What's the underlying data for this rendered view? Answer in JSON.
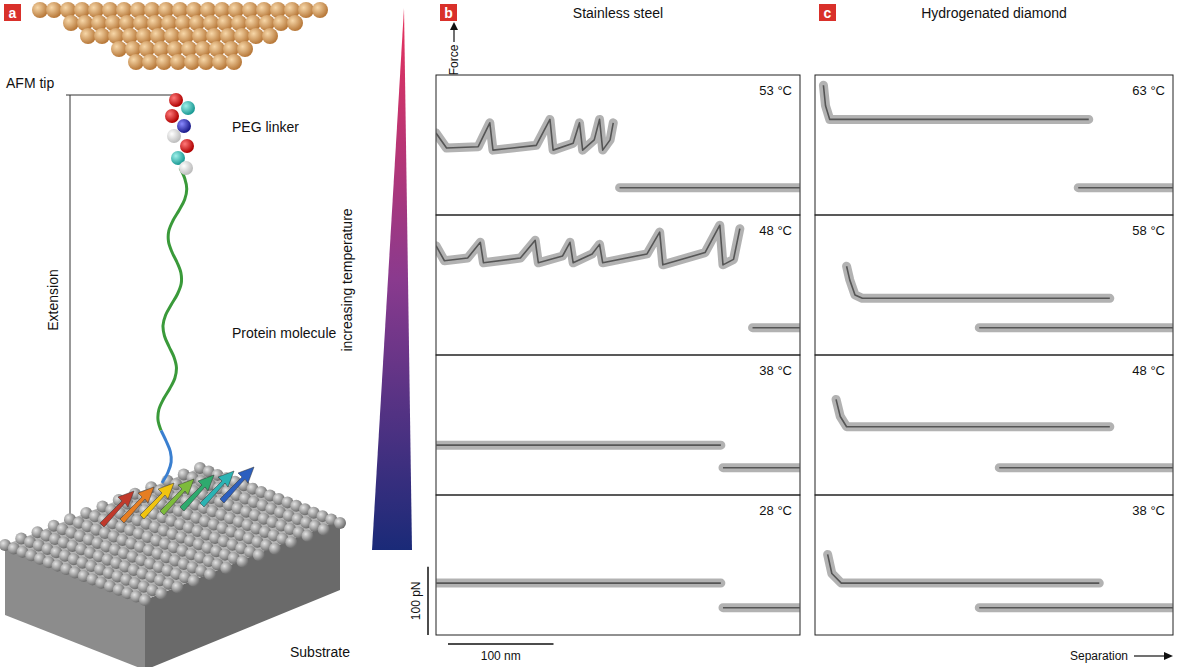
{
  "panel_a": {
    "letter": "a",
    "labels": {
      "tip": "AFM tip",
      "linker": "PEG linker",
      "extension": "Extension",
      "protein": "Protein molecule",
      "substrate": "Substrate"
    }
  },
  "temperature_label": "increasing temperature",
  "axis_labels": {
    "force": "Force",
    "separation": "Separation"
  },
  "scale_bars": {
    "force": {
      "value": 100,
      "label": "100 pN"
    },
    "separation": {
      "value": 100,
      "label": "100 nm"
    }
  },
  "columns": [
    {
      "letter": "b",
      "title": "Stainless steel"
    },
    {
      "letter": "c",
      "title": "Hydrogenated diamond"
    }
  ],
  "chart_data": [
    {
      "type": "line",
      "title": "53 °C",
      "xlim": [
        0,
        345
      ],
      "ylim": [
        -40,
        165
      ],
      "tick_labels": false,
      "series": [
        {
          "color": "#555555",
          "x": [
            0,
            10,
            40,
            51,
            54,
            95,
            108,
            111,
            130,
            136,
            139,
            150,
            155,
            158,
            165,
            168,
            171,
            174,
            345
          ],
          "values": [
            80,
            58,
            60,
            95,
            55,
            62,
            100,
            55,
            65,
            95,
            55,
            70,
            100,
            55,
            70,
            95,
            null,
            0,
            0
          ]
        }
      ]
    },
    {
      "type": "line",
      "title": "48 °C",
      "xlim": [
        0,
        345
      ],
      "ylim": [
        -40,
        165
      ],
      "tick_labels": false,
      "series": [
        {
          "color": "#555555",
          "x": [
            0,
            8,
            30,
            42,
            45,
            80,
            94,
            97,
            120,
            127,
            130,
            148,
            155,
            158,
            200,
            212,
            215,
            255,
            269,
            272,
            282,
            288,
            291,
            300,
            345
          ],
          "values": [
            120,
            98,
            102,
            125,
            95,
            102,
            128,
            95,
            105,
            125,
            95,
            108,
            122,
            95,
            108,
            140,
            92,
            110,
            150,
            92,
            100,
            145,
            null,
            0,
            0
          ]
        }
      ]
    },
    {
      "type": "line",
      "title": "38 °C",
      "xlim": [
        0,
        345
      ],
      "ylim": [
        -40,
        165
      ],
      "tick_labels": false,
      "series": [
        {
          "color": "#555555",
          "x": [
            0,
            270,
            271,
            272,
            345
          ],
          "values": [
            33,
            33,
            null,
            0,
            0
          ]
        }
      ]
    },
    {
      "type": "line",
      "title": "28 °C",
      "xlim": [
        0,
        345
      ],
      "ylim": [
        -40,
        165
      ],
      "tick_labels": false,
      "series": [
        {
          "color": "#555555",
          "x": [
            0,
            270,
            271,
            272,
            345
          ],
          "values": [
            36,
            36,
            null,
            0,
            0
          ]
        }
      ]
    },
    {
      "type": "line",
      "title": "63 °C",
      "xlim": [
        0,
        340
      ],
      "ylim": [
        -40,
        165
      ],
      "tick_labels": false,
      "series": [
        {
          "color": "#555555",
          "x": [
            8,
            10,
            14,
            260,
            260,
            250,
            340
          ],
          "values": [
            150,
            120,
            100,
            100,
            null,
            0,
            0
          ]
        }
      ]
    },
    {
      "type": "line",
      "title": "58 °C",
      "xlim": [
        0,
        340
      ],
      "ylim": [
        -40,
        165
      ],
      "tick_labels": false,
      "series": [
        {
          "color": "#555555",
          "x": [
            30,
            33,
            38,
            45,
            280,
            280,
            156,
            340
          ],
          "values": [
            90,
            70,
            48,
            43,
            43,
            null,
            0,
            0
          ]
        }
      ]
    },
    {
      "type": "line",
      "title": "48 °C",
      "xlim": [
        0,
        340
      ],
      "ylim": [
        -40,
        165
      ],
      "tick_labels": false,
      "series": [
        {
          "color": "#555555",
          "x": [
            20,
            24,
            30,
            280,
            280,
            175,
            340
          ],
          "values": [
            100,
            75,
            60,
            60,
            null,
            0,
            0
          ]
        }
      ]
    },
    {
      "type": "line",
      "title": "38 °C",
      "xlim": [
        0,
        340
      ],
      "ylim": [
        -40,
        165
      ],
      "tick_labels": false,
      "series": [
        {
          "color": "#555555",
          "x": [
            12,
            16,
            25,
            270,
            270,
            156,
            340
          ],
          "values": [
            78,
            50,
            36,
            36,
            null,
            0,
            0
          ]
        }
      ]
    }
  ]
}
